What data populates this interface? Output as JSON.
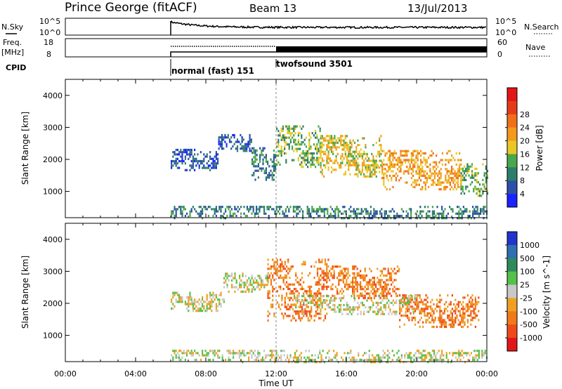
{
  "header": {
    "station": "Prince George (fitACF)",
    "beam": "Beam 13",
    "date": "13/Jul/2013"
  },
  "noise_panel": {
    "left_label": "N.Sky",
    "right_label": "N.Search",
    "left_ticks": [
      "10^5",
      "10^0"
    ],
    "right_ticks": [
      "10^5",
      "10^0"
    ]
  },
  "freq_panel": {
    "left_label_1": "Freq.",
    "left_label_2": "[MHz]",
    "right_label": "Nave",
    "left_ticks": [
      "18",
      "8"
    ],
    "right_ticks": [
      "60",
      "0"
    ]
  },
  "cpid": {
    "label": "CPID",
    "modes": [
      {
        "name": "normal (fast) 151",
        "start_hour": 6
      },
      {
        "name": "twofsound 3501",
        "start_hour": 12
      }
    ]
  },
  "chart_data": [
    {
      "type": "heatmap",
      "title": "",
      "ylabel": "Slant Range [km]",
      "xlabel": "",
      "xlim": [
        0,
        24
      ],
      "ylim": [
        180,
        4500
      ],
      "yticks": [
        "1000",
        "2000",
        "3000",
        "4000"
      ],
      "colorbar": {
        "label": "Power [dB]",
        "ticks": [
          "4",
          "8",
          "12",
          "16",
          "20",
          "24",
          "28"
        ],
        "colors": [
          "#1a22ff",
          "#2c4fa8",
          "#2e7d6a",
          "#49a84a",
          "#e8c825",
          "#f39a1d",
          "#f0701a",
          "#e63b1a",
          "#e21616"
        ]
      },
      "data_start_hour": 6,
      "bands": [
        {
          "t0": 6.0,
          "t1": 24.0,
          "r0": 200,
          "r1": 600,
          "density": 0.55,
          "level": 2
        },
        {
          "t0": 6.0,
          "t1": 8.7,
          "r0": 1700,
          "r1": 2400,
          "density": 0.6,
          "level": 1
        },
        {
          "t0": 8.7,
          "t1": 10.6,
          "r0": 2300,
          "r1": 2800,
          "density": 0.6,
          "level": 1
        },
        {
          "t0": 10.6,
          "t1": 12.0,
          "r0": 1400,
          "r1": 2400,
          "density": 0.55,
          "level": 2
        },
        {
          "t0": 12.0,
          "t1": 14.5,
          "r0": 1800,
          "r1": 3100,
          "density": 0.55,
          "level": 3
        },
        {
          "t0": 14.5,
          "t1": 18.0,
          "r0": 1500,
          "r1": 2800,
          "density": 0.6,
          "level": 4
        },
        {
          "t0": 18.0,
          "t1": 22.5,
          "r0": 1100,
          "r1": 2300,
          "density": 0.6,
          "level": 5
        },
        {
          "t0": 22.5,
          "t1": 24.0,
          "r0": 900,
          "r1": 1900,
          "density": 0.5,
          "level": 3
        }
      ]
    },
    {
      "type": "heatmap",
      "title": "",
      "ylabel": "Slant Range [km]",
      "xlabel": "Time UT",
      "xlim": [
        0,
        24
      ],
      "ylim": [
        180,
        4500
      ],
      "xticks": [
        "00:00",
        "04:00",
        "08:00",
        "12:00",
        "16:00",
        "20:00",
        "00:00"
      ],
      "yticks": [
        "1000",
        "2000",
        "3000",
        "4000"
      ],
      "colorbar": {
        "label": "Velocity [m s^-1]",
        "ticks": [
          "1000",
          "500",
          "100",
          "25",
          "-25",
          "-100",
          "-500",
          "-1000"
        ],
        "colors": [
          "#2233cc",
          "#2d6fb0",
          "#2e8a5c",
          "#55c04a",
          "#c8c8c8",
          "#f0a020",
          "#f07a1a",
          "#f04a1a",
          "#e21616"
        ]
      },
      "data_start_hour": 6,
      "bands": [
        {
          "t0": 6.0,
          "t1": 24.0,
          "r0": 200,
          "r1": 600,
          "density": 0.5,
          "level": 4
        },
        {
          "t0": 6.0,
          "t1": 9.0,
          "r0": 1800,
          "r1": 2400,
          "density": 0.55,
          "level": 4
        },
        {
          "t0": 9.0,
          "t1": 11.5,
          "r0": 2400,
          "r1": 3000,
          "density": 0.55,
          "level": 4
        },
        {
          "t0": 11.5,
          "t1": 15.0,
          "r0": 1500,
          "r1": 3400,
          "density": 0.45,
          "level": 6
        },
        {
          "t0": 15.0,
          "t1": 19.0,
          "r0": 2200,
          "r1": 3200,
          "density": 0.55,
          "level": 6
        },
        {
          "t0": 19.0,
          "t1": 23.5,
          "r0": 1300,
          "r1": 2300,
          "density": 0.6,
          "level": 6
        },
        {
          "t0": 13.0,
          "t1": 20.0,
          "r0": 1700,
          "r1": 2300,
          "density": 0.45,
          "level": 4
        }
      ]
    }
  ]
}
